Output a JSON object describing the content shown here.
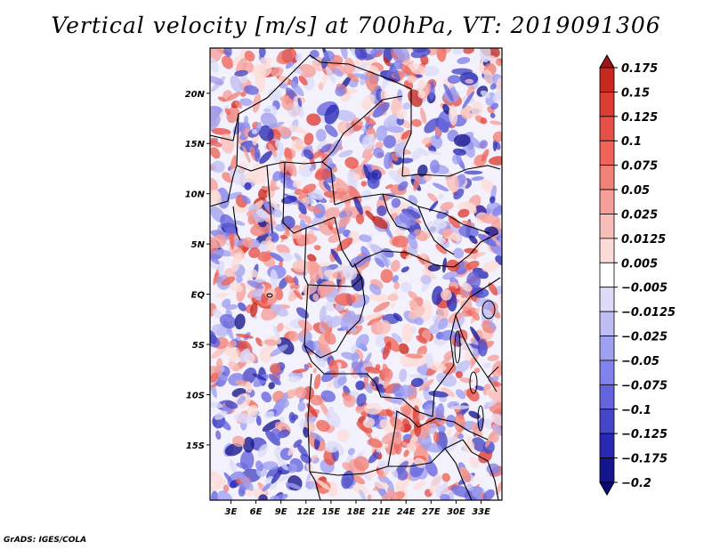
{
  "chart_data": {
    "type": "heatmap",
    "title": "Vertical velocity [m/s] at 700hPa, VT: 2019091306",
    "variable": "Vertical velocity",
    "units": "m/s",
    "level": "700hPa",
    "valid_time": "2019091306",
    "lon_range": [
      0.5,
      35.5
    ],
    "lat_range": [
      -20.5,
      24.5
    ],
    "x_ticks": [
      {
        "value": 3,
        "label": "3E"
      },
      {
        "value": 6,
        "label": "6E"
      },
      {
        "value": 9,
        "label": "9E"
      },
      {
        "value": 12,
        "label": "12E"
      },
      {
        "value": 15,
        "label": "15E"
      },
      {
        "value": 18,
        "label": "18E"
      },
      {
        "value": 21,
        "label": "21E"
      },
      {
        "value": 24,
        "label": "24E"
      },
      {
        "value": 27,
        "label": "27E"
      },
      {
        "value": 30,
        "label": "30E"
      },
      {
        "value": 33,
        "label": "33E"
      }
    ],
    "y_ticks": [
      {
        "value": 20,
        "label": "20N"
      },
      {
        "value": 15,
        "label": "15N"
      },
      {
        "value": 10,
        "label": "10N"
      },
      {
        "value": 5,
        "label": "5N"
      },
      {
        "value": 0,
        "label": "EQ"
      },
      {
        "value": -5,
        "label": "5S"
      },
      {
        "value": -10,
        "label": "10S"
      },
      {
        "value": -15,
        "label": "15S"
      }
    ],
    "colorbar": {
      "labels": [
        "0.175",
        "0.15",
        "0.125",
        "0.1",
        "0.075",
        "0.05",
        "0.025",
        "0.0125",
        "0.005",
        "−0.005",
        "−0.0125",
        "−0.025",
        "−0.05",
        "−0.075",
        "−0.1",
        "−0.125",
        "−0.175",
        "−0.2"
      ],
      "colors": [
        "#a0141e",
        "#c8281e",
        "#dc3c32",
        "#e65046",
        "#f0645a",
        "#f08278",
        "#f5a09b",
        "#fabeb9",
        "#fddcd7",
        "#ffffff",
        "#dcdcfa",
        "#bebef5",
        "#a0a0f0",
        "#8282eb",
        "#6464dc",
        "#4646c8",
        "#2828b4",
        "#14148c",
        "#0a0a78"
      ]
    }
  },
  "credit": "GrADS: IGES/COLA"
}
